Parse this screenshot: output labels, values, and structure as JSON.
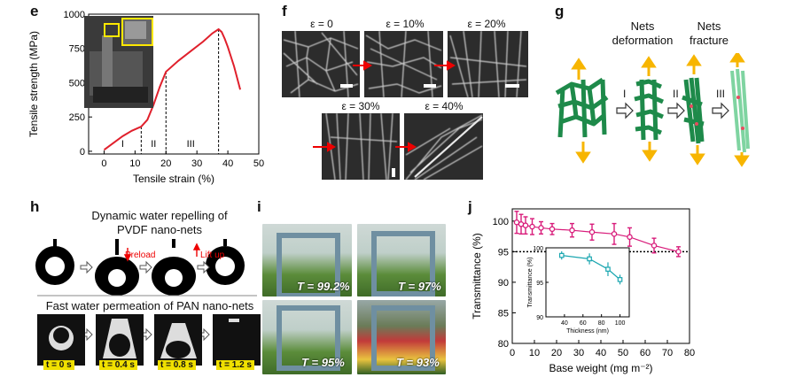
{
  "panels": {
    "e": {
      "letter": "e",
      "chart_data": {
        "type": "line",
        "xlabel": "Tensile strain (%)",
        "ylabel": "Tensile strength (MPa)",
        "xlim": [
          -5,
          50
        ],
        "ylim": [
          -20,
          1000
        ],
        "xticks": [
          "0",
          "10",
          "20",
          "30",
          "40",
          "50"
        ],
        "yticks": [
          "0",
          "250",
          "500",
          "750",
          "1000"
        ],
        "x": [
          0,
          3,
          6,
          9,
          12,
          14,
          16,
          18,
          20,
          24,
          28,
          32,
          35,
          37,
          38,
          39,
          40,
          42,
          44
        ],
        "y": [
          10,
          60,
          110,
          150,
          180,
          230,
          340,
          470,
          580,
          660,
          730,
          800,
          860,
          890,
          870,
          820,
          760,
          620,
          450
        ],
        "regions": [
          "I",
          "II",
          "III"
        ],
        "dashed_x": [
          12,
          20,
          37
        ],
        "color": "#e0202c"
      }
    },
    "f": {
      "letter": "f",
      "labels": [
        "ε = 0",
        "ε = 10%",
        "ε = 20%",
        "ε = 30%",
        "ε = 40%"
      ]
    },
    "g": {
      "letter": "g",
      "stage1": "Nets\ndeformation",
      "stage1_a": "Nets",
      "stage1_b": "deformation",
      "stage2_a": "Nets",
      "stage2_b": "fracture",
      "romans": [
        "I",
        "II",
        "III"
      ]
    },
    "h": {
      "letter": "h",
      "title_a": "Dynamic water repelling of",
      "title_b": "PVDF nano-nets",
      "preload": "Preload",
      "liftup": "Lift up",
      "subtitle": "Fast water permeation of PAN nano-nets",
      "times": [
        "t = 0 s",
        "t = 0.4 s",
        "t = 0.8 s",
        "t = 1.2 s"
      ]
    },
    "i": {
      "letter": "i",
      "transmittances": [
        "T = 99.2%",
        "T = 97%",
        "T = 95%",
        "T = 93%"
      ]
    },
    "j": {
      "letter": "j",
      "chart_data": [
        {
          "type": "line",
          "xlabel": "Base weight (mg m⁻²)",
          "ylabel": "Transmittance (%)",
          "xlim": [
            0,
            80
          ],
          "ylim": [
            80,
            102
          ],
          "xticks": [
            "0",
            "10",
            "20",
            "30",
            "40",
            "50",
            "60",
            "70",
            "80"
          ],
          "yticks": [
            "80",
            "85",
            "90",
            "95",
            "100"
          ],
          "x": [
            2,
            4,
            6,
            9,
            13,
            18,
            27,
            36,
            46,
            53,
            64,
            75
          ],
          "y": [
            99.8,
            99.5,
            99.3,
            99.1,
            98.9,
            98.7,
            98.5,
            98.2,
            97.9,
            97.4,
            96.0,
            95.0
          ],
          "err": [
            1.8,
            1.6,
            1.4,
            1.3,
            1.0,
            0.9,
            1.1,
            1.3,
            1.7,
            1.5,
            1.2,
            0.8
          ],
          "reference_y": 95,
          "color": "#d81b7a"
        },
        {
          "type": "line",
          "inset": true,
          "xlabel": "Thickness (nm)",
          "ylabel": "Transmittance (%)",
          "xlim": [
            20,
            110
          ],
          "ylim": [
            90,
            100
          ],
          "xticks": [
            "40",
            "60",
            "80",
            "100"
          ],
          "yticks": [
            "90",
            "95",
            "100"
          ],
          "x": [
            37,
            67,
            87,
            100
          ],
          "y": [
            98.9,
            98.4,
            96.9,
            95.4
          ],
          "err": [
            0.6,
            0.8,
            1.0,
            0.7
          ],
          "color": "#1aa6b0"
        }
      ]
    }
  }
}
